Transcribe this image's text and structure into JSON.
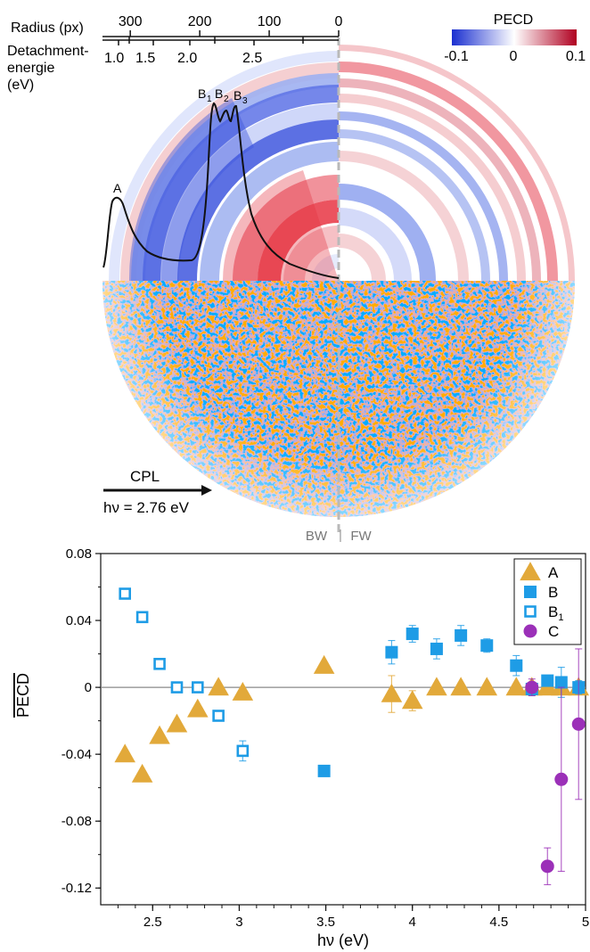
{
  "top_panel": {
    "radius_axis": {
      "label": "Radius (px)",
      "ticks": [
        "300",
        "200",
        "100",
        "0"
      ],
      "ticks_at": [
        300,
        200,
        100,
        0
      ]
    },
    "energy_axis": {
      "label_line1": "Detachment-",
      "label_line2": "energie",
      "label_line3": "(eV)",
      "ticks": [
        "1.0",
        "1.5",
        "2.0",
        "2.5"
      ]
    },
    "colorbar": {
      "title": "PECD",
      "min_label": "-0.1",
      "mid_label": "0",
      "max_label": "0.1",
      "colors": {
        "negative": "#1f35d6",
        "neutral": "#ffffff",
        "positive": "#c0112a"
      }
    },
    "peak_labels": {
      "a": "A",
      "b1": "B",
      "b1_sub": "1",
      "b2": "B",
      "b2_sub": "2",
      "b3": "B",
      "b3_sub": "3"
    },
    "cpl_label": "CPL",
    "photon_energy": "hν = 2.76 eV",
    "bw_label": "BW",
    "fw_label": "FW",
    "bw_fw_divider": "|"
  },
  "chart_data": {
    "type": "scatter",
    "xlabel": "hν (eV)",
    "ylabel": "PECD",
    "xlim": [
      2.2,
      5.0
    ],
    "ylim": [
      -0.13,
      0.08
    ],
    "xticks": [
      2.5,
      3,
      3.5,
      4,
      4.5,
      5
    ],
    "xtick_labels": [
      "2.5",
      "3",
      "3.5",
      "4",
      "4.5",
      "5"
    ],
    "yticks": [
      0.08,
      0.04,
      0,
      -0.04,
      -0.08,
      -0.12
    ],
    "ytick_labels": [
      "0.08",
      "0.04",
      "0",
      "-0.04",
      "-0.08",
      "-0.12"
    ],
    "zero_line": true,
    "grid": false,
    "legend": "top-right",
    "series": [
      {
        "name": "A",
        "marker": "triangle",
        "color": "#e2a93a",
        "filled": true,
        "x": [
          2.34,
          2.44,
          2.54,
          2.64,
          2.76,
          2.88,
          3.02,
          3.49,
          3.88,
          4.0,
          4.14,
          4.28,
          4.43,
          4.6,
          4.69,
          4.78,
          4.86,
          4.96
        ],
        "y": [
          -0.04,
          -0.052,
          -0.029,
          -0.022,
          -0.013,
          0.0,
          -0.003,
          0.013,
          -0.004,
          -0.008,
          0.0,
          0.0,
          0.0,
          0.0,
          0.0,
          0.0,
          0.0,
          0.0
        ],
        "err": [
          0,
          0,
          0,
          0,
          0,
          0,
          0,
          0,
          0.011,
          0.006,
          0,
          0,
          0,
          0,
          0,
          0,
          0,
          0
        ]
      },
      {
        "name": "B",
        "marker": "square",
        "color": "#1e9ce6",
        "filled": true,
        "x": [
          3.49,
          3.88,
          4.0,
          4.14,
          4.28,
          4.43,
          4.6,
          4.69,
          4.78,
          4.86,
          4.96
        ],
        "y": [
          -0.05,
          0.021,
          0.032,
          0.023,
          0.031,
          0.025,
          0.013,
          -0.001,
          0.004,
          0.003,
          0.0
        ],
        "err": [
          0,
          0.007,
          0.005,
          0.006,
          0.006,
          0.004,
          0.006,
          0.004,
          0.003,
          0.009,
          0.004
        ]
      },
      {
        "name": "B",
        "name_sub": "1",
        "marker": "square",
        "color": "#1e9ce6",
        "filled": false,
        "x": [
          2.34,
          2.44,
          2.54,
          2.64,
          2.76,
          2.88,
          3.02
        ],
        "y": [
          0.056,
          0.042,
          0.014,
          0.0,
          0.0,
          -0.017,
          -0.038
        ],
        "err": [
          0,
          0,
          0,
          0,
          0,
          0,
          0.006
        ]
      },
      {
        "name": "C",
        "marker": "circle",
        "color": "#9b30b8",
        "filled": true,
        "x": [
          4.69,
          4.78,
          4.86,
          4.96
        ],
        "y": [
          0.0,
          -0.107,
          -0.055,
          -0.022
        ],
        "err": [
          0.005,
          0.011,
          0.055,
          0.045
        ]
      }
    ]
  }
}
